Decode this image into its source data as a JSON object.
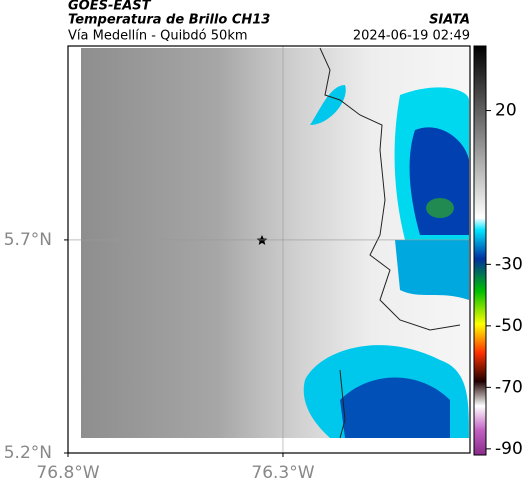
{
  "header": {
    "title": "GOES-EAST",
    "subtitle": "Temperatura de Brillo CH13",
    "source": "SIATA",
    "region": "Vía Medellín - Quibdó 50km",
    "timestamp": "2024-06-19 02:49"
  },
  "map": {
    "xlim": [
      -76.8,
      -75.865
    ],
    "ylim": [
      5.2,
      6.155
    ],
    "xticks": [
      {
        "value": -76.8,
        "label": "76.8°W"
      },
      {
        "value": -76.3,
        "label": "76.3°W"
      }
    ],
    "yticks": [
      {
        "value": 5.2,
        "label": "5.2°N"
      },
      {
        "value": 5.7,
        "label": "5.7°N"
      }
    ],
    "grid": true,
    "colorbar": {
      "lim": [
        -92,
        41
      ],
      "ticks": [
        20,
        -30,
        -50,
        -70,
        -90
      ]
    }
  }
}
